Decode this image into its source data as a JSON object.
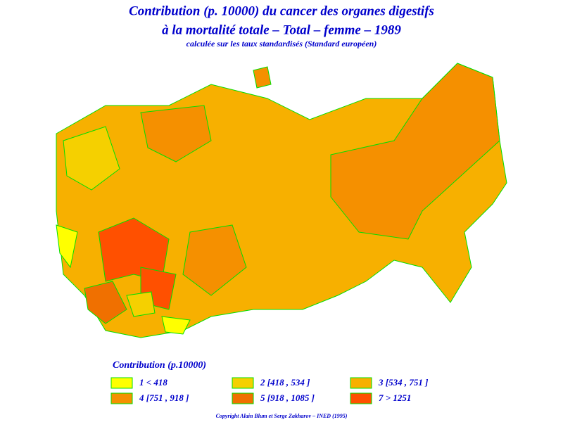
{
  "title": "Contribution (p. 10000) du cancer des organes digestifs",
  "title2": "à la mortalité totale – Total – femme – 1989",
  "subtitle": "calculée sur les taux standardisés (Standard européen)",
  "legend": {
    "title": "Contribution (p.10000)",
    "entries": [
      {
        "label": "1 < 418",
        "color": "#ffff00"
      },
      {
        "label": "2 [418 , 534 ]",
        "color": "#f5d000"
      },
      {
        "label": "3 [534 , 751 ]",
        "color": "#f7b000"
      },
      {
        "label": "4 [751 , 918 ]",
        "color": "#f59000"
      },
      {
        "label": "5 [918 , 1085 ]",
        "color": "#f07000"
      },
      {
        "label": "7 > 1251",
        "color": "#ff5000"
      }
    ]
  },
  "footer": "Copyright Alain Blum et Serge Zakharov – INED (1995)"
}
